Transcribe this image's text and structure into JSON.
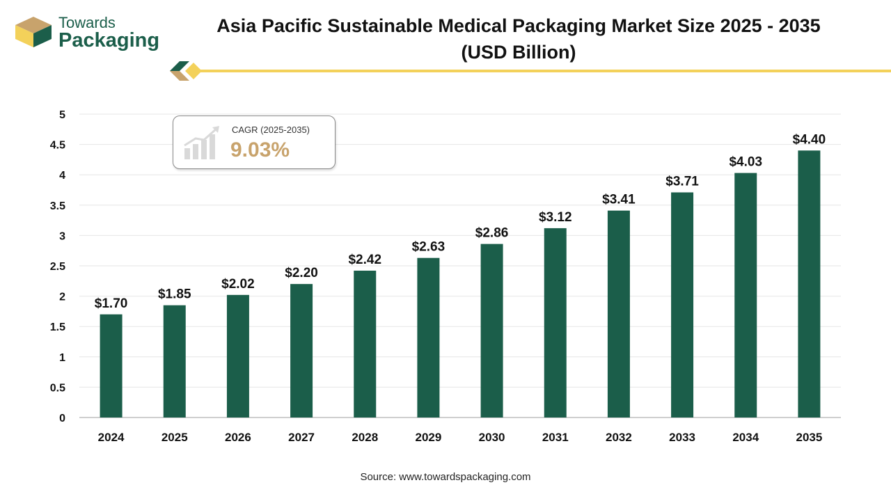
{
  "brand": {
    "line1": "Towards",
    "line2": "Packaging",
    "colors": {
      "green": "#1b5e4a",
      "gold": "#f3d15a",
      "tan": "#c8a36c"
    }
  },
  "title_line1": "Asia Pacific Sustainable Medical Packaging Market Size 2025 - 2035",
  "title_line2": "(USD Billion)",
  "cagr": {
    "label": "CAGR (2025-2035)",
    "value": "9.03%",
    "icon": "growth-chart-icon"
  },
  "source": "Source: www.towardspackaging.com",
  "chart_data": {
    "type": "bar",
    "categories": [
      "2024",
      "2025",
      "2026",
      "2027",
      "2028",
      "2029",
      "2030",
      "2031",
      "2032",
      "2033",
      "2034",
      "2035"
    ],
    "values": [
      1.7,
      1.85,
      2.02,
      2.2,
      2.42,
      2.63,
      2.86,
      3.12,
      3.41,
      3.71,
      4.03,
      4.4
    ],
    "value_labels": [
      "$1.70",
      "$1.85",
      "$2.02",
      "$2.20",
      "$2.42",
      "$2.63",
      "$2.86",
      "$3.12",
      "$3.41",
      "$3.71",
      "$4.03",
      "$4.40"
    ],
    "yticks": [
      "0",
      "0.5",
      "1",
      "1.5",
      "2",
      "2.5",
      "3",
      "3.5",
      "4",
      "4.5",
      "5"
    ],
    "ylim": [
      0,
      5
    ],
    "grid": true,
    "bar_color": "#1b5e4a"
  }
}
